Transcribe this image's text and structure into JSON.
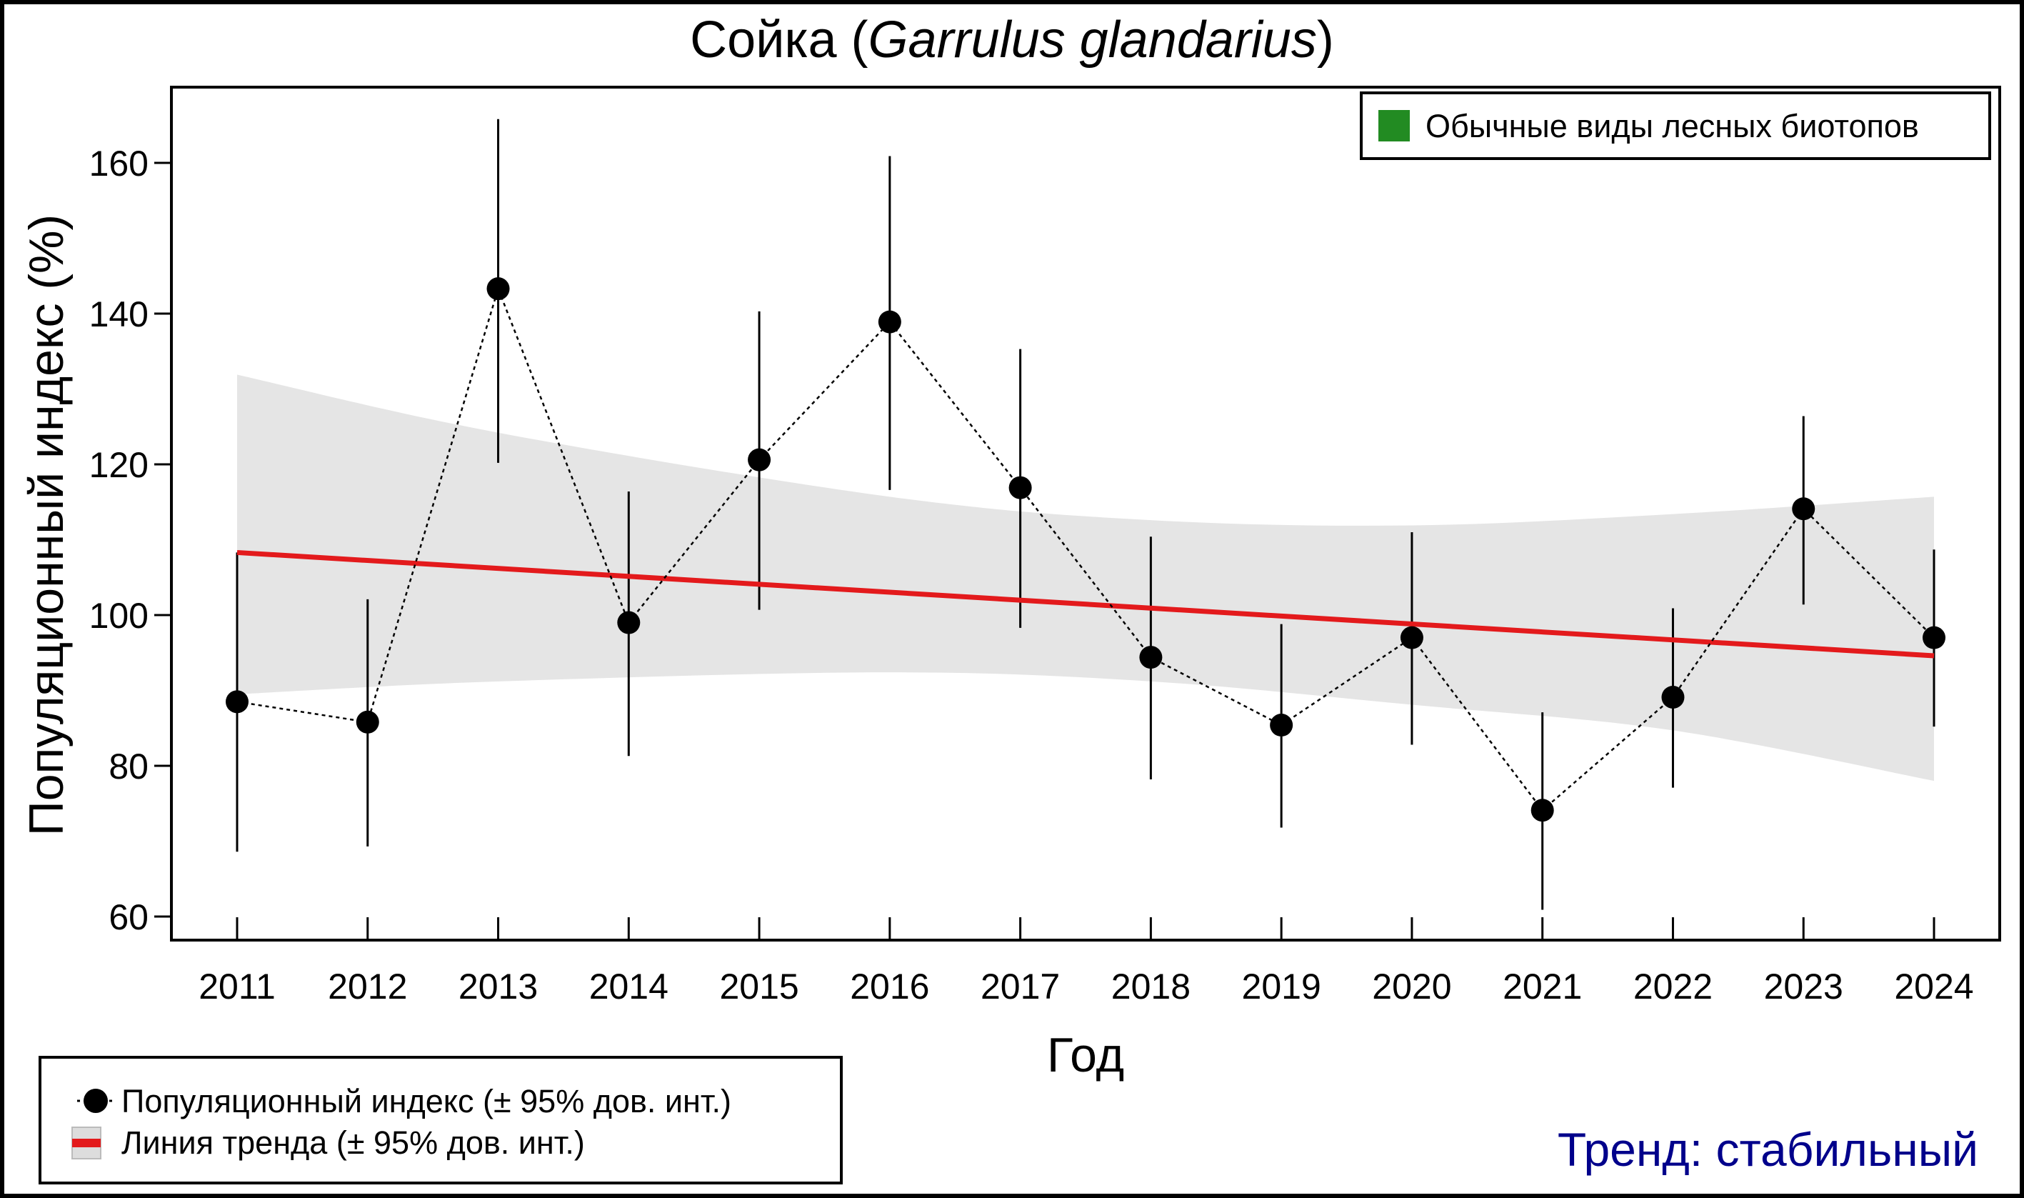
{
  "chart_data": {
    "type": "line",
    "title": {
      "main": "Сойка (",
      "species": "Garrulus glandarius",
      "close": ")"
    },
    "xlabel": "Год",
    "ylabel": "Популяционный индекс (%)",
    "ylim": [
      57,
      170
    ],
    "yticks": [
      60,
      80,
      100,
      120,
      140,
      160
    ],
    "x": [
      2011,
      2012,
      2013,
      2014,
      2015,
      2016,
      2017,
      2018,
      2019,
      2020,
      2021,
      2022,
      2023,
      2024
    ],
    "series": [
      {
        "name": "Популяционный индекс (± 95% дов. инт.)",
        "values": [
          88.5,
          85.8,
          143.3,
          99.0,
          120.6,
          138.9,
          116.9,
          94.4,
          85.4,
          97.0,
          74.1,
          89.1,
          114.1,
          97.0
        ],
        "ci_upper": [
          108.3,
          102.1,
          165.8,
          116.4,
          140.3,
          160.9,
          135.3,
          110.4,
          98.8,
          111.0,
          87.1,
          100.9,
          126.4,
          108.7
        ],
        "ci_lower": [
          68.6,
          69.3,
          120.2,
          81.3,
          100.7,
          116.6,
          98.3,
          78.2,
          71.8,
          82.8,
          60.9,
          77.1,
          101.4,
          85.2
        ],
        "color": "#000000"
      },
      {
        "name": "Линия тренда (± 95% дов. инт.)",
        "trend_start": 108.3,
        "trend_end": 94.6,
        "band_x": [
          2011,
          2013,
          2016,
          2018,
          2020,
          2022,
          2024
        ],
        "band_upper": [
          131.9,
          124.2,
          115.7,
          112.6,
          111.9,
          113.4,
          115.7
        ],
        "band_lower": [
          89.5,
          91.2,
          92.4,
          91.2,
          88.1,
          84.7,
          78.0
        ],
        "color": "#E31A1C",
        "band_color": "#E5E5E5"
      }
    ],
    "group_legend": {
      "label": "Обычные виды лесных биотопов",
      "color": "#228B22",
      "placement": "top-right"
    },
    "legend_placement": "bottom-left",
    "grid": false
  },
  "trend_status": "Тренд: стабильный"
}
